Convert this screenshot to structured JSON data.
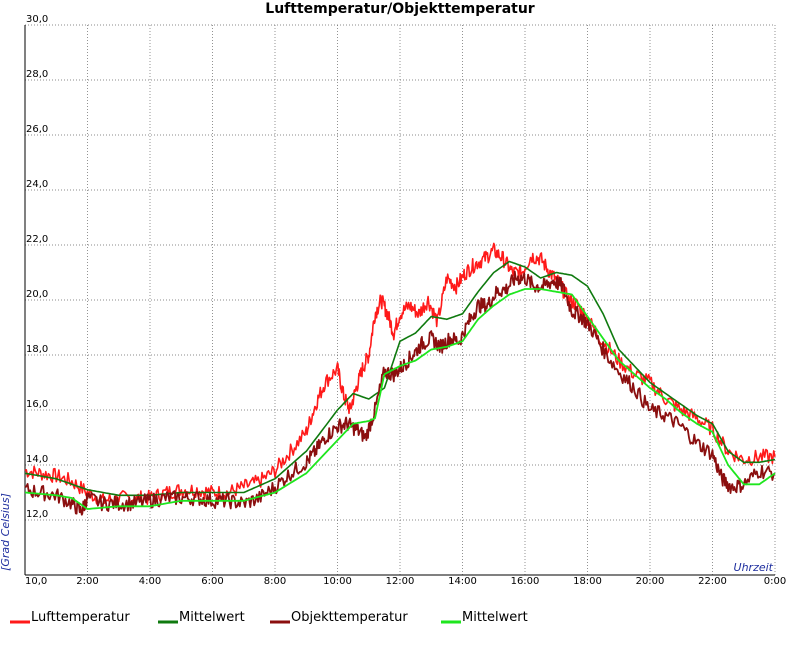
{
  "chart_data": {
    "type": "line",
    "title": "Lufttemperatur/Objekttemperatur",
    "xlabel": "Uhrzeit",
    "ylabel": "[Grad Celsius]",
    "x_ticks": [
      "10,0",
      "2:00",
      "4:00",
      "6:00",
      "8:00",
      "10:00",
      "12:00",
      "14:00",
      "16:00",
      "18:00",
      "20:00",
      "22:00",
      "0:00"
    ],
    "y_ticks": [
      "12,0",
      "14,0",
      "16,0",
      "18,0",
      "20,0",
      "22,0",
      "24,0",
      "26,0",
      "28,0",
      "30,0"
    ],
    "xlim": [
      0,
      24
    ],
    "ylim": [
      10,
      30
    ],
    "grid": true,
    "legend_position": "bottom",
    "series": [
      {
        "name": "Lufttemperatur",
        "color": "#ff1a1a",
        "x": [
          0,
          0.5,
          1,
          1.5,
          2,
          2.5,
          3,
          3.5,
          4,
          4.5,
          5,
          5.5,
          6,
          6.5,
          7,
          7.5,
          8,
          8.5,
          9,
          9.3,
          9.6,
          10,
          10.2,
          10.4,
          10.6,
          10.8,
          11,
          11.2,
          11.4,
          11.6,
          11.8,
          12,
          12.3,
          12.6,
          12.9,
          13.2,
          13.5,
          13.8,
          14.1,
          14.4,
          14.7,
          15,
          15.3,
          15.6,
          15.9,
          16.2,
          16.5,
          16.8,
          17.1,
          17.4,
          17.7,
          18,
          18.5,
          19,
          19.5,
          20,
          20.5,
          21,
          21.5,
          22,
          22.5,
          23,
          23.5,
          24
        ],
        "y": [
          13.8,
          13.7,
          13.6,
          13.4,
          13.0,
          12.7,
          12.8,
          12.8,
          12.8,
          13.0,
          13.1,
          13.1,
          13.0,
          13.0,
          13.2,
          13.4,
          13.8,
          14.5,
          15.2,
          16.2,
          17.0,
          17.5,
          16.5,
          16.0,
          16.8,
          17.5,
          18.0,
          19.5,
          20.0,
          19.5,
          18.8,
          19.5,
          19.8,
          19.5,
          20.0,
          19.2,
          20.8,
          20.5,
          21.0,
          21.3,
          21.5,
          21.8,
          21.5,
          21.0,
          21.0,
          21.6,
          21.5,
          21.0,
          20.6,
          20.0,
          19.8,
          19.3,
          18.5,
          17.8,
          17.3,
          17.0,
          16.4,
          16.0,
          15.7,
          15.3,
          14.5,
          14.2,
          14.3,
          14.3
        ]
      },
      {
        "name": "Mittelwert",
        "color": "#0f7a0f",
        "x": [
          0,
          1,
          2,
          3,
          4,
          5,
          6,
          7,
          8,
          9,
          10,
          10.5,
          11,
          11.5,
          12,
          12.5,
          13,
          13.5,
          14,
          14.5,
          15,
          15.5,
          16,
          16.5,
          17,
          17.5,
          18,
          18.5,
          19,
          19.5,
          20,
          20.5,
          21,
          21.5,
          22,
          22.5,
          23,
          23.5,
          24
        ],
        "y": [
          13.7,
          13.5,
          13.1,
          12.9,
          12.9,
          13.0,
          13.0,
          13.0,
          13.5,
          14.5,
          16.0,
          16.6,
          16.4,
          16.8,
          18.5,
          18.8,
          19.4,
          19.3,
          19.5,
          20.3,
          21.0,
          21.4,
          21.2,
          20.8,
          21.0,
          20.9,
          20.5,
          19.5,
          18.2,
          17.6,
          17.0,
          16.6,
          16.2,
          15.8,
          15.5,
          14.5,
          14.1,
          14.1,
          14.2
        ]
      },
      {
        "name": "Objekttemperatur",
        "color": "#8b0f0f",
        "x": [
          0,
          0.5,
          1,
          1.5,
          1.8,
          2,
          2.5,
          3,
          3.5,
          4,
          4.5,
          5,
          5.5,
          6,
          6.5,
          7,
          7.5,
          8,
          8.5,
          9,
          9.3,
          9.6,
          10,
          10.3,
          10.6,
          10.9,
          11.2,
          11.5,
          11.8,
          12.1,
          12.4,
          12.7,
          13,
          13.3,
          13.6,
          13.9,
          14.2,
          14.5,
          14.8,
          15.1,
          15.4,
          15.7,
          16,
          16.3,
          16.6,
          16.9,
          17.2,
          17.5,
          17.8,
          18.1,
          18.5,
          19,
          19.5,
          20,
          20.5,
          21,
          21.5,
          22,
          22.3,
          22.6,
          23,
          23.5,
          24
        ],
        "y": [
          13.1,
          13.0,
          12.9,
          12.6,
          12.3,
          12.8,
          12.6,
          12.6,
          12.6,
          12.7,
          12.8,
          12.8,
          12.8,
          12.7,
          12.7,
          12.6,
          12.8,
          13.2,
          13.7,
          14.1,
          14.5,
          15.0,
          15.4,
          15.5,
          15.3,
          15.0,
          16.0,
          17.4,
          17.3,
          17.6,
          18.0,
          18.4,
          18.6,
          18.3,
          18.6,
          18.5,
          19.2,
          19.8,
          19.8,
          20.3,
          20.4,
          20.8,
          20.8,
          20.5,
          20.5,
          20.7,
          20.5,
          19.6,
          19.4,
          19.0,
          18.2,
          17.4,
          16.8,
          16.0,
          15.8,
          15.4,
          14.8,
          14.4,
          13.5,
          13.2,
          13.3,
          13.8,
          13.7
        ]
      },
      {
        "name": "Mittelwert",
        "color": "#1ee61e",
        "x": [
          0,
          1,
          1.5,
          2,
          3,
          4,
          5,
          6,
          7,
          8,
          9,
          10,
          10.5,
          11,
          11.2,
          11.5,
          12,
          12.5,
          13,
          13.5,
          14,
          14.5,
          15,
          15.5,
          16,
          16.5,
          17,
          17.5,
          18,
          18.5,
          19,
          19.5,
          20,
          20.5,
          21,
          21.5,
          22,
          22.5,
          23,
          23.5,
          24
        ],
        "y": [
          13.0,
          12.9,
          12.8,
          12.4,
          12.5,
          12.5,
          12.7,
          12.7,
          12.7,
          13.0,
          13.7,
          14.9,
          15.5,
          15.6,
          15.7,
          17.3,
          17.6,
          17.8,
          18.2,
          18.3,
          18.5,
          19.3,
          19.8,
          20.2,
          20.4,
          20.4,
          20.3,
          20.2,
          19.4,
          18.6,
          17.8,
          17.3,
          16.8,
          16.4,
          15.9,
          15.5,
          15.2,
          14.0,
          13.3,
          13.3,
          13.7
        ]
      }
    ]
  }
}
